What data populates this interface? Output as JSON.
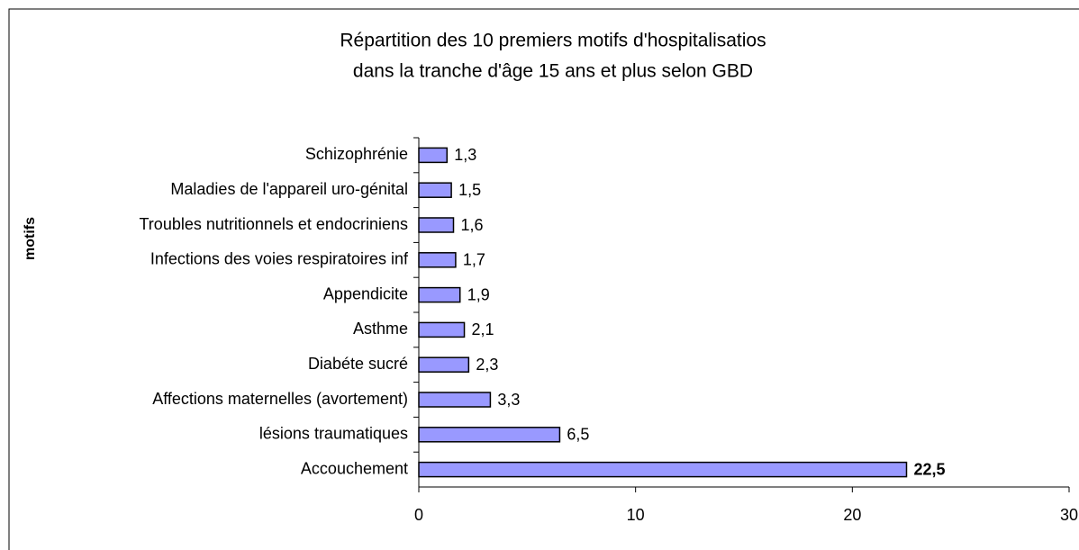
{
  "chart_data": {
    "type": "barh",
    "title": [
      "Répartition des 10 premiers motifs d'hospitalisatios",
      "dans la tranche d'âge 15 ans et plus selon GBD"
    ],
    "y_label": "motifs",
    "categories": [
      "Schizophrénie",
      "Maladies de l'appareil uro-génital",
      "Troubles nutritionnels et endocriniens",
      "Infections des voies respiratoires inf",
      "Appendicite",
      "Asthme",
      "Diabéte sucré",
      "Affections maternelles (avortement)",
      "lésions traumatiques",
      "Accouchement"
    ],
    "values": [
      1.3,
      1.5,
      1.6,
      1.7,
      1.9,
      2.1,
      2.3,
      3.3,
      6.5,
      22.5
    ],
    "value_labels": [
      "1,3",
      "1,5",
      "1,6",
      "1,7",
      "1,9",
      "2,1",
      "2,3",
      "3,3",
      "6,5",
      "22,5"
    ],
    "color": "#9999ff",
    "xlim": [
      0,
      30
    ],
    "xticks": [
      0,
      10,
      20,
      30
    ]
  }
}
